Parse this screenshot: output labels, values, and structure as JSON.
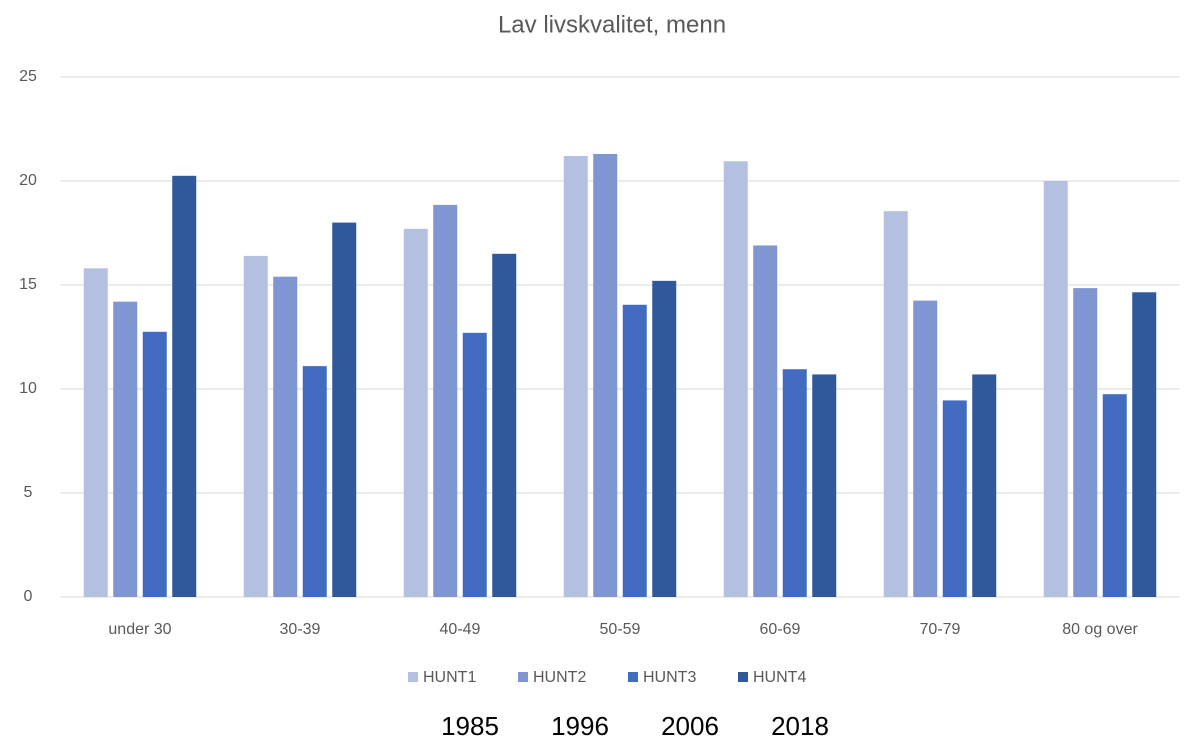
{
  "chart_data": {
    "type": "bar",
    "title": "Lav livskvalitet, menn",
    "categories": [
      "under 30",
      "30-39",
      "40-49",
      "50-59",
      "60-69",
      "70-79",
      "80 og over"
    ],
    "series": [
      {
        "name": "HUNT1",
        "color": "#b4c0e0",
        "values": [
          15.8,
          16.4,
          17.7,
          21.2,
          20.95,
          18.55,
          20.0
        ]
      },
      {
        "name": "HUNT2",
        "color": "#7f96d2",
        "values": [
          14.2,
          15.4,
          18.85,
          21.3,
          16.9,
          14.25,
          14.85
        ]
      },
      {
        "name": "HUNT3",
        "color": "#416cbf",
        "values": [
          12.75,
          11.1,
          12.7,
          14.05,
          10.95,
          9.45,
          9.75
        ]
      },
      {
        "name": "HUNT4",
        "color": "#30599b",
        "values": [
          20.25,
          18.0,
          16.5,
          15.2,
          10.7,
          10.7,
          14.65
        ]
      }
    ],
    "ylim": [
      0,
      25
    ],
    "yticks": [
      0,
      5,
      10,
      15,
      20,
      25
    ],
    "grid": true,
    "annotations": [
      "1985",
      "1996",
      "2006",
      "2018"
    ]
  }
}
